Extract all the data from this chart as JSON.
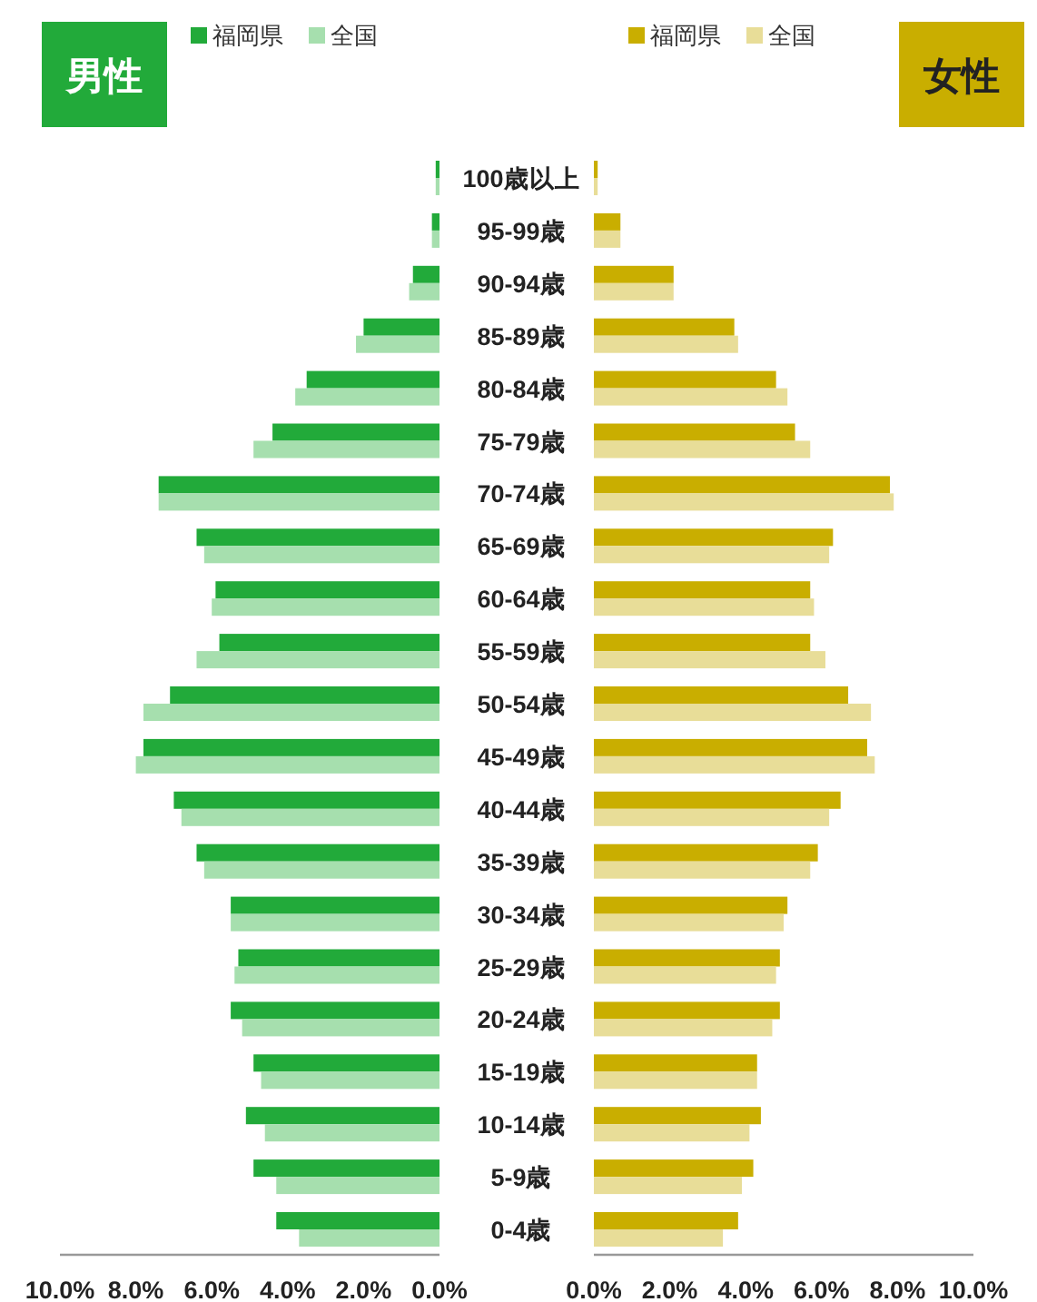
{
  "chart_data": [
    {
      "type": "bar",
      "orientation": "horizontal",
      "title": "男性",
      "legend": "top",
      "categories": [
        "100歳以上",
        "95-99歳",
        "90-94歳",
        "85-89歳",
        "80-84歳",
        "75-79歳",
        "70-74歳",
        "65-69歳",
        "60-64歳",
        "55-59歳",
        "50-54歳",
        "45-49歳",
        "40-44歳",
        "35-39歳",
        "30-34歳",
        "25-29歳",
        "20-24歳",
        "15-19歳",
        "10-14歳",
        "5-9歳",
        "0-4歳"
      ],
      "series": [
        {
          "name": "福岡県",
          "color": "#22aa3a",
          "values": [
            0.1,
            0.2,
            0.7,
            2.0,
            3.5,
            4.4,
            7.4,
            6.4,
            5.9,
            5.8,
            7.1,
            7.8,
            7.0,
            6.4,
            5.5,
            5.3,
            5.5,
            4.9,
            5.1,
            4.9,
            4.3
          ]
        },
        {
          "name": "全国",
          "color": "#a6dfae",
          "values": [
            0.1,
            0.2,
            0.8,
            2.2,
            3.8,
            4.9,
            7.4,
            6.2,
            6.0,
            6.4,
            7.8,
            8.0,
            6.8,
            6.2,
            5.5,
            5.4,
            5.2,
            4.7,
            4.6,
            4.3,
            3.7
          ]
        }
      ],
      "xlim": [
        10,
        0
      ],
      "xticks": [
        {
          "value": 10,
          "label": "10.0%"
        },
        {
          "value": 8,
          "label": "8.0%"
        },
        {
          "value": 6,
          "label": "6.0%"
        },
        {
          "value": 4,
          "label": "4.0%"
        },
        {
          "value": 2,
          "label": "2.0%"
        },
        {
          "value": 0,
          "label": "0.0%"
        }
      ]
    },
    {
      "type": "bar",
      "orientation": "horizontal",
      "title": "女性",
      "legend": "top",
      "tick_labels": "x",
      "categories": [
        null,
        null,
        null,
        null,
        null,
        null,
        null,
        null,
        null,
        null,
        null,
        null,
        null,
        null,
        null,
        null,
        null,
        null,
        null,
        null,
        null
      ],
      "series": [
        {
          "name": "福岡県",
          "color": "#c9ae00",
          "values": [
            0.1,
            0.7,
            2.1,
            3.7,
            4.8,
            5.3,
            7.8,
            6.3,
            5.7,
            5.7,
            6.7,
            7.2,
            6.5,
            5.9,
            5.1,
            4.9,
            4.9,
            4.3,
            4.4,
            4.2,
            3.8
          ]
        },
        {
          "name": "全国",
          "color": "#e8dd98",
          "values": [
            0.1,
            0.7,
            2.1,
            3.8,
            5.1,
            5.7,
            7.9,
            6.2,
            5.8,
            6.1,
            7.3,
            7.4,
            6.2,
            5.7,
            5.0,
            4.8,
            4.7,
            4.3,
            4.1,
            3.9,
            3.4
          ]
        }
      ],
      "xlim": [
        0,
        10
      ],
      "xticks": [
        {
          "value": 0,
          "label": "0.0%"
        },
        {
          "value": 2,
          "label": "2.0%"
        },
        {
          "value": 4,
          "label": "4.0%"
        },
        {
          "value": 6,
          "label": "6.0%"
        },
        {
          "value": 8,
          "label": "8.0%"
        },
        {
          "value": 10,
          "label": "10.0%"
        }
      ]
    }
  ]
}
